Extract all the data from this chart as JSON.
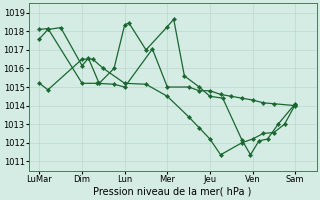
{
  "background_color": "#d4ece4",
  "grid_color": "#b8d8cc",
  "line_color": "#1a6630",
  "marker_color": "#1a6630",
  "xlabel": "Pression niveau de la mer( hPa )",
  "ylim": [
    1010.5,
    1019.5
  ],
  "yticks": [
    1011,
    1012,
    1013,
    1014,
    1015,
    1016,
    1017,
    1018,
    1019
  ],
  "xtick_labels": [
    "LuMar",
    "Dim",
    "Lun",
    "Mer",
    "Jeu",
    "Ven",
    "Sam"
  ],
  "xtick_positions": [
    0,
    2,
    4,
    6,
    8,
    10,
    12
  ],
  "s1_x": [
    0,
    0.4,
    1.0,
    2.0,
    2.3,
    2.8,
    3.5,
    4.0,
    4.2,
    5.0,
    6.0,
    6.3,
    6.8,
    7.5,
    8.0,
    8.6,
    9.5,
    9.9,
    10.3,
    10.7,
    11.2,
    12.0
  ],
  "s1_y": [
    1017.6,
    1018.1,
    1018.2,
    1016.15,
    1016.55,
    1015.2,
    1016.0,
    1018.35,
    1018.45,
    1017.0,
    1018.25,
    1018.65,
    1015.6,
    1015.0,
    1014.5,
    1014.4,
    1012.15,
    1011.35,
    1012.1,
    1012.2,
    1013.0,
    1014.1
  ],
  "s2_x": [
    0,
    0.4,
    2.0,
    2.7,
    3.5,
    4.0,
    5.3,
    6.0,
    7.0,
    7.5,
    8.0,
    8.5,
    9.0,
    9.5,
    10.0,
    10.5,
    11.0,
    12.0
  ],
  "s2_y": [
    1018.1,
    1018.15,
    1015.2,
    1015.2,
    1015.15,
    1015.0,
    1017.05,
    1015.0,
    1015.0,
    1014.8,
    1014.8,
    1014.6,
    1014.5,
    1014.4,
    1014.3,
    1014.15,
    1014.1,
    1014.0
  ],
  "s3_x": [
    0,
    0.4,
    2.0,
    2.5,
    3.0,
    4.0,
    5.0,
    6.0,
    7.0,
    7.5,
    8.0,
    8.5,
    9.5,
    10.0,
    10.5,
    11.0,
    11.5,
    12.0
  ],
  "s3_y": [
    1015.2,
    1014.85,
    1016.5,
    1016.5,
    1016.0,
    1015.2,
    1015.15,
    1014.5,
    1013.4,
    1012.8,
    1012.2,
    1011.35,
    1012.0,
    1012.2,
    1012.5,
    1012.55,
    1013.0,
    1014.05
  ],
  "xlim": [
    -0.5,
    13.0
  ],
  "xlabel_fontsize": 7,
  "tick_fontsize": 6,
  "marker_size": 2.2,
  "line_width": 0.9
}
